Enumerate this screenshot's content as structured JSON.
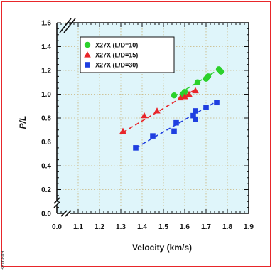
{
  "side_id": "3816809",
  "chart_data": {
    "type": "scatter",
    "xlabel": "Velocity (km/s)",
    "ylabel": "P/L",
    "xlim": [
      1.0,
      1.9
    ],
    "ylim": [
      0.0,
      1.6
    ],
    "x_ticks": [
      "0.0",
      "1.1",
      "1.2",
      "1.3",
      "1.4",
      "1.5",
      "1.6",
      "1.7",
      "1.8",
      "1.9"
    ],
    "y_ticks": [
      "0.0",
      "0.2",
      "0.4",
      "0.6",
      "0.8",
      "1.0",
      "1.2",
      "1.4",
      "1.6"
    ],
    "axis_break": true,
    "grid": true,
    "legend_position": "top-left",
    "plot_background": "#dff5fa",
    "series": [
      {
        "name": "X27X (L/D=10)",
        "marker": "circle",
        "color": "#2bd12b",
        "fit": {
          "x": [
            1.55,
            1.77
          ],
          "y": [
            0.98,
            1.22
          ]
        },
        "points": [
          {
            "x": 1.55,
            "y": 0.99
          },
          {
            "x": 1.59,
            "y": 1.0
          },
          {
            "x": 1.6,
            "y": 1.02
          },
          {
            "x": 1.66,
            "y": 1.1
          },
          {
            "x": 1.7,
            "y": 1.13
          },
          {
            "x": 1.71,
            "y": 1.15
          },
          {
            "x": 1.76,
            "y": 1.21
          },
          {
            "x": 1.77,
            "y": 1.19
          }
        ]
      },
      {
        "name": "X27X (L/D=15)",
        "marker": "triangle",
        "color": "#e8262a",
        "fit": {
          "x": [
            1.31,
            1.65
          ],
          "y": [
            0.68,
            1.04
          ]
        },
        "points": [
          {
            "x": 1.31,
            "y": 0.69
          },
          {
            "x": 1.41,
            "y": 0.82
          },
          {
            "x": 1.47,
            "y": 0.86
          },
          {
            "x": 1.58,
            "y": 0.97
          },
          {
            "x": 1.6,
            "y": 0.98
          },
          {
            "x": 1.62,
            "y": 1.0
          },
          {
            "x": 1.65,
            "y": 1.03
          }
        ]
      },
      {
        "name": "X27X (L/D=30)",
        "marker": "square",
        "color": "#1f3fe0",
        "fit": {
          "x": [
            1.37,
            1.75
          ],
          "y": [
            0.55,
            0.94
          ]
        },
        "points": [
          {
            "x": 1.37,
            "y": 0.55
          },
          {
            "x": 1.45,
            "y": 0.65
          },
          {
            "x": 1.55,
            "y": 0.69
          },
          {
            "x": 1.56,
            "y": 0.76
          },
          {
            "x": 1.64,
            "y": 0.82
          },
          {
            "x": 1.65,
            "y": 0.79
          },
          {
            "x": 1.65,
            "y": 0.86
          },
          {
            "x": 1.7,
            "y": 0.89
          },
          {
            "x": 1.75,
            "y": 0.93
          }
        ]
      }
    ]
  }
}
